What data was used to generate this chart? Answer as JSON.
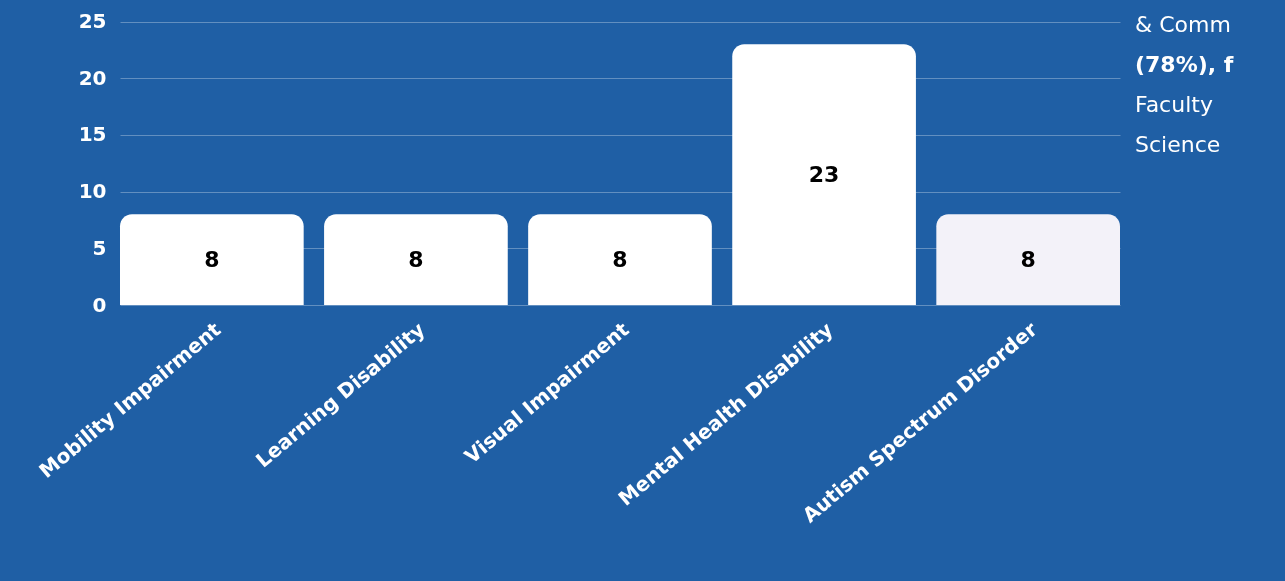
{
  "chart_data": {
    "type": "bar",
    "categories": [
      "Mobility Impairment",
      "Learning Disability",
      "Visual Impairment",
      "Mental Health Disability",
      "Autism Spectrum Disorder"
    ],
    "values": [
      8,
      8,
      8,
      23,
      8
    ],
    "colors": [
      "#ffffff",
      "#ffffff",
      "#ffffff",
      "#ffffff",
      "#f3f2f9"
    ],
    "ylim": [
      0,
      26.9
    ],
    "yticks": [
      0,
      5,
      10,
      15,
      20,
      25
    ],
    "grid": "y",
    "data_labels": true,
    "annotations": [
      "& Comm",
      "(78%), f",
      "Faculty",
      "Science"
    ]
  }
}
